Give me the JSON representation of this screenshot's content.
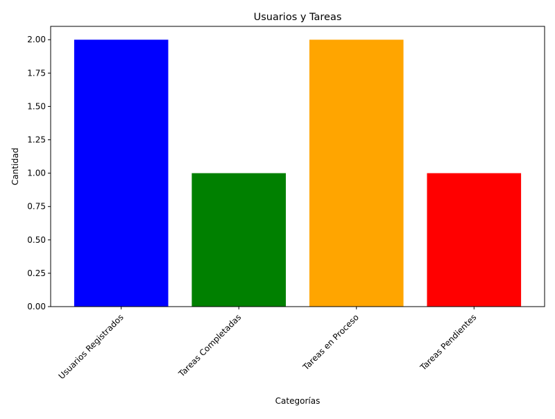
{
  "chart_data": {
    "type": "bar",
    "title": "Usuarios y Tareas",
    "xlabel": "Categorías",
    "ylabel": "Cantidad",
    "categories": [
      "Usuarios Registrados",
      "Tareas Completadas",
      "Tareas en Proceso",
      "Tareas Pendientes"
    ],
    "values": [
      2,
      1,
      2,
      1
    ],
    "colors": [
      "#0000ff",
      "#008000",
      "#ffa500",
      "#ff0000"
    ],
    "ylim": [
      0,
      2.1
    ],
    "yticks": [
      "0.00",
      "0.25",
      "0.50",
      "0.75",
      "1.00",
      "1.25",
      "1.50",
      "1.75",
      "2.00"
    ],
    "grid": false,
    "legend": "none"
  }
}
